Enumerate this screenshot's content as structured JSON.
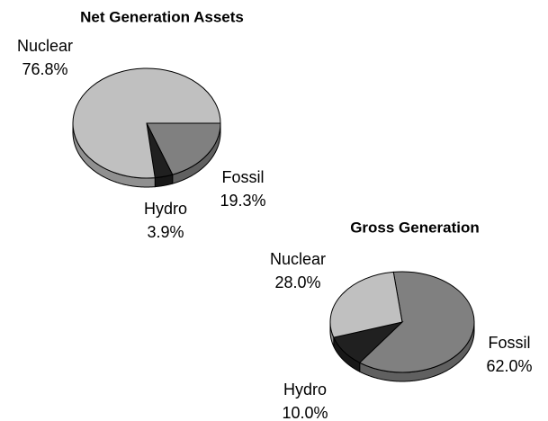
{
  "chart_data": [
    {
      "type": "pie",
      "title": "Net Generation Assets",
      "categories": [
        "Fossil",
        "Hydro",
        "Nuclear"
      ],
      "values": [
        19.3,
        3.9,
        76.8
      ],
      "value_labels": [
        "19.3%",
        "3.9%",
        "76.8%"
      ],
      "colors": [
        "#808080",
        "#202020",
        "#c0c0c0"
      ]
    },
    {
      "type": "pie",
      "title": "Gross Generation",
      "categories": [
        "Fossil",
        "Hydro",
        "Nuclear"
      ],
      "values": [
        62.0,
        10.0,
        28.0
      ],
      "value_labels": [
        "62.0%",
        "10.0%",
        "28.0%"
      ],
      "colors": [
        "#808080",
        "#202020",
        "#c0c0c0"
      ]
    }
  ]
}
